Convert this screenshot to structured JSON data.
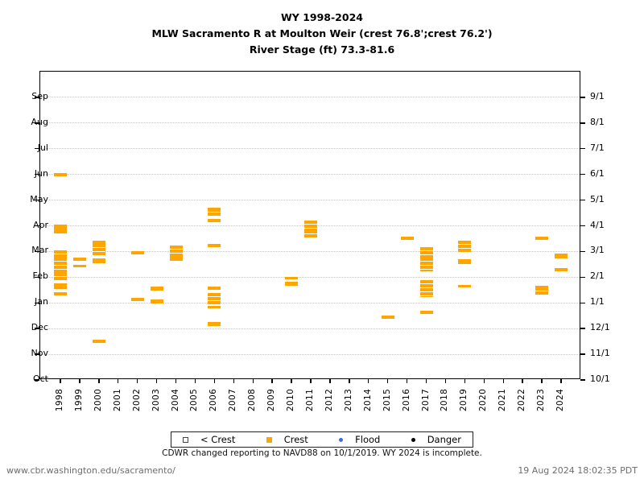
{
  "caption": "CDWR changed reporting to NAVD88 on 10/1/2019. WY 2024 is incomplete.",
  "footer": {
    "left": "www.cbr.washington.edu/sacramento/",
    "right": "19 Aug 2024 18:02:35 PDT"
  },
  "chart_data": {
    "type": "scatter",
    "title_lines": [
      "WY 1998-2024",
      "MLW Sacramento R at Moulton Weir (crest 76.8';crest 76.2')",
      "River Stage (ft) 73.3-81.6"
    ],
    "x_years": [
      1998,
      1999,
      2000,
      2001,
      2002,
      2003,
      2004,
      2005,
      2006,
      2007,
      2008,
      2009,
      2010,
      2011,
      2012,
      2013,
      2014,
      2015,
      2016,
      2017,
      2018,
      2019,
      2020,
      2021,
      2022,
      2023,
      2024
    ],
    "y_left_ticks": [
      "Oct",
      "Nov",
      "Dec",
      "Jan",
      "Feb",
      "Mar",
      "Apr",
      "May",
      "Jun",
      "Jul",
      "Aug",
      "Sep"
    ],
    "y_right_ticks": [
      "10/1",
      "11/1",
      "12/1",
      "1/1",
      "2/1",
      "3/1",
      "4/1",
      "5/1",
      "6/1",
      "7/1",
      "8/1",
      "9/1"
    ],
    "grid": "dotted-horizontal",
    "legend": [
      {
        "label": "< Crest",
        "slug": "lt-crest",
        "marker": "open-square",
        "color": "#ffffff"
      },
      {
        "label": "Crest",
        "slug": "crest",
        "marker": "square",
        "color": "#FFA500"
      },
      {
        "label": "Flood",
        "slug": "flood",
        "marker": "dot",
        "color": "#4169E1"
      },
      {
        "label": "Danger",
        "slug": "danger",
        "marker": "dot",
        "color": "#000000"
      }
    ],
    "series": [
      {
        "name": "Crest",
        "color": "#FFA500",
        "events": [
          {
            "year": 1998,
            "start": "5/30",
            "end": "6/1"
          },
          {
            "year": 1998,
            "start": "3/29",
            "end": "4/1"
          },
          {
            "year": 1998,
            "start": "3/23",
            "end": "3/27"
          },
          {
            "year": 1998,
            "start": "2/23",
            "end": "3/1"
          },
          {
            "year": 1998,
            "start": "2/6",
            "end": "2/21"
          },
          {
            "year": 1998,
            "start": "1/28",
            "end": "2/4"
          },
          {
            "year": 1998,
            "start": "1/21",
            "end": "1/23"
          },
          {
            "year": 1998,
            "start": "1/18",
            "end": "1/20"
          },
          {
            "year": 1998,
            "start": "1/10",
            "end": "1/12"
          },
          {
            "year": 1999,
            "start": "2/19",
            "end": "2/21"
          },
          {
            "year": 1999,
            "start": "2/12",
            "end": "2/13"
          },
          {
            "year": 2000,
            "start": "3/10",
            "end": "3/13"
          },
          {
            "year": 2000,
            "start": "2/27",
            "end": "3/9"
          },
          {
            "year": 2000,
            "start": "2/25",
            "end": "2/26"
          },
          {
            "year": 2000,
            "start": "2/17",
            "end": "2/20"
          },
          {
            "year": 2000,
            "start": "11/15",
            "end": "11/17"
          },
          {
            "year": 2002,
            "start": "2/26",
            "end": "2/28"
          },
          {
            "year": 2002,
            "start": "1/4",
            "end": "1/6"
          },
          {
            "year": 2003,
            "start": "1/16",
            "end": "1/19"
          },
          {
            "year": 2003,
            "start": "1/1",
            "end": "1/4"
          },
          {
            "year": 2004,
            "start": "2/24",
            "end": "3/7"
          },
          {
            "year": 2004,
            "start": "2/19",
            "end": "2/22"
          },
          {
            "year": 2006,
            "start": "4/18",
            "end": "4/21"
          },
          {
            "year": 2006,
            "start": "4/13",
            "end": "4/15"
          },
          {
            "year": 2006,
            "start": "4/6",
            "end": "4/8"
          },
          {
            "year": 2006,
            "start": "3/7",
            "end": "3/9"
          },
          {
            "year": 2006,
            "start": "1/17",
            "end": "1/19"
          },
          {
            "year": 2006,
            "start": "12/30",
            "end": "1/11"
          },
          {
            "year": 2006,
            "start": "12/26",
            "end": "12/27"
          },
          {
            "year": 2006,
            "start": "12/5",
            "end": "12/7"
          },
          {
            "year": 2010,
            "start": "1/30",
            "end": "1/31"
          },
          {
            "year": 2010,
            "start": "1/22",
            "end": "1/25"
          },
          {
            "year": 2011,
            "start": "3/27",
            "end": "4/6"
          },
          {
            "year": 2011,
            "start": "3/18",
            "end": "3/25"
          },
          {
            "year": 2015,
            "start": "12/13",
            "end": "12/15"
          },
          {
            "year": 2016,
            "start": "3/15",
            "end": "3/17"
          },
          {
            "year": 2017,
            "start": "2/23",
            "end": "3/5"
          },
          {
            "year": 2017,
            "start": "2/8",
            "end": "2/21"
          },
          {
            "year": 2017,
            "start": "1/20",
            "end": "1/27"
          },
          {
            "year": 2017,
            "start": "1/9",
            "end": "1/17"
          },
          {
            "year": 2017,
            "start": "12/19",
            "end": "12/21"
          },
          {
            "year": 2019,
            "start": "2/28",
            "end": "3/13"
          },
          {
            "year": 2019,
            "start": "2/16",
            "end": "2/19"
          },
          {
            "year": 2019,
            "start": "1/20",
            "end": "1/21"
          },
          {
            "year": 2023,
            "start": "3/15",
            "end": "3/17"
          },
          {
            "year": 2023,
            "start": "1/19",
            "end": "1/20"
          },
          {
            "year": 2023,
            "start": "1/11",
            "end": "1/18"
          },
          {
            "year": 2024,
            "start": "2/22",
            "end": "2/25"
          },
          {
            "year": 2024,
            "start": "2/8",
            "end": "2/10"
          }
        ]
      },
      {
        "name": "< Crest",
        "color": "#ffffff",
        "events": []
      },
      {
        "name": "Flood",
        "color": "#4169E1",
        "events": []
      },
      {
        "name": "Danger",
        "color": "#000000",
        "events": []
      }
    ]
  }
}
